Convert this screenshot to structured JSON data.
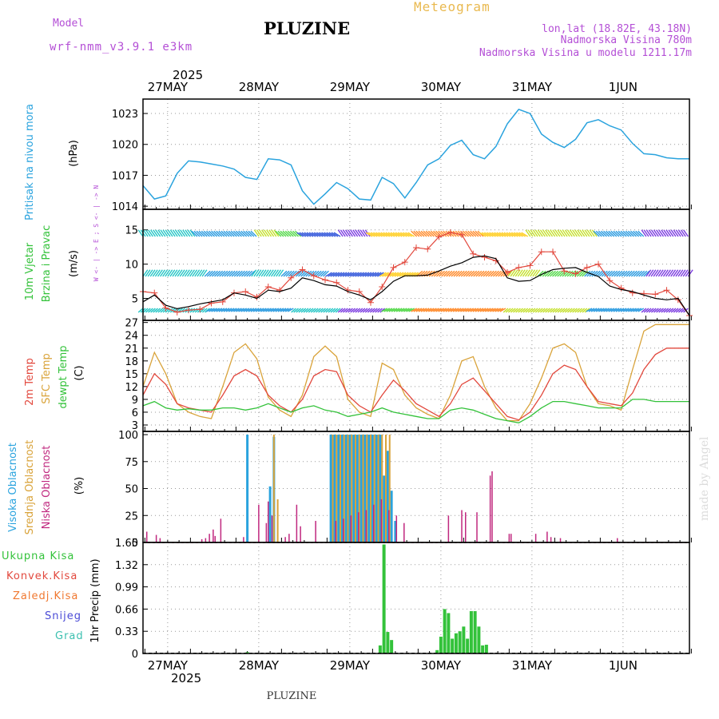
{
  "header": {
    "model_label": "Model",
    "model_name": "wrf-nmm_v3.9.1  e3km",
    "station": "PLUZINE",
    "meteogram": "Meteogram",
    "lonlat": "lon,lat (18.82E, 43.18N)",
    "elevation": "Nadmorska Visina 780m",
    "model_elevation": "Nadmorska Visina u modelu 1211.17m",
    "footer": "PLUZINE",
    "watermark": "made by Angel"
  },
  "colors": {
    "pressure": "#2aa3de",
    "wind_speed": "#e2483d",
    "wind_black": "#000000",
    "t2m": "#e2483d",
    "tsfc": "#d9a33a",
    "dewpt": "#33c23a",
    "high_cloud": "#2aa3de",
    "mid_cloud": "#d9a33a",
    "low_cloud": "#c0287f",
    "precip": "#33c23a",
    "conv": "#e2483d",
    "frozen": "#f07830",
    "snow": "#4b4bd6",
    "grad": "#3cc0b0",
    "label_purple": "#b44fd6"
  },
  "timeline": {
    "year": "2025",
    "days": [
      "27MAY",
      "28MAY",
      "29MAY",
      "30MAY",
      "31MAY",
      "1JUN"
    ],
    "day_positions_h": [
      6.5,
      30.5,
      54.5,
      78.5,
      102.5,
      126.5
    ],
    "total_hours": 144
  },
  "chart_data": [
    {
      "type": "line",
      "title": "Pritisak na nivou mora",
      "ylabel": "(hPa)",
      "ylim": [
        1013.7,
        1024.4
      ],
      "yticks": [
        1014,
        1017,
        1020,
        1023
      ],
      "series": [
        {
          "name": "Pritisak na nivou mora",
          "x": [
            0,
            3,
            6,
            9,
            12,
            15,
            18,
            21,
            24,
            27,
            30,
            33,
            36,
            39,
            42,
            45,
            48,
            51,
            54,
            57,
            60,
            63,
            66,
            69,
            72,
            75,
            78,
            81,
            84,
            87,
            90,
            93,
            96,
            99,
            102,
            105,
            108,
            111,
            114,
            117,
            120,
            123,
            126,
            129,
            132,
            135,
            138,
            141,
            144
          ],
          "values": [
            1016.0,
            1014.7,
            1015.0,
            1017.2,
            1018.4,
            1018.3,
            1018.1,
            1017.9,
            1017.6,
            1016.8,
            1016.6,
            1018.6,
            1018.5,
            1018.0,
            1015.5,
            1014.2,
            1015.2,
            1016.3,
            1015.7,
            1014.7,
            1014.6,
            1016.8,
            1016.2,
            1014.8,
            1016.3,
            1018.0,
            1018.6,
            1019.9,
            1020.4,
            1019.0,
            1018.6,
            1019.8,
            1022.0,
            1023.4,
            1023.0,
            1021.0,
            1020.2,
            1019.7,
            1020.5,
            1022.1,
            1022.4,
            1021.8,
            1021.4,
            1020.1,
            1019.1,
            1019.0,
            1018.7,
            1018.6,
            1018.6
          ]
        }
      ]
    },
    {
      "type": "line",
      "title": "10m Vjetar Brzina i Pravac",
      "ylabel": "(m/s)",
      "ylim": [
        1.8,
        18
      ],
      "yticks": [
        5,
        10,
        15
      ],
      "direction_legend": "W <- | -> E ; S <- | -> N",
      "series": [
        {
          "name": "wind_speed",
          "x": [
            0,
            3,
            6,
            9,
            12,
            15,
            18,
            21,
            24,
            27,
            30,
            33,
            36,
            39,
            42,
            45,
            48,
            51,
            54,
            57,
            60,
            63,
            66,
            69,
            72,
            75,
            78,
            81,
            84,
            87,
            90,
            93,
            96,
            99,
            102,
            105,
            108,
            111,
            114,
            117,
            120,
            123,
            126,
            129,
            132,
            135,
            138,
            141,
            144
          ],
          "values": [
            6.0,
            5.8,
            3.6,
            3.0,
            3.3,
            3.4,
            4.3,
            4.5,
            5.8,
            6.0,
            5.2,
            6.7,
            6.2,
            8.0,
            9.2,
            8.3,
            7.7,
            7.3,
            6.2,
            6.0,
            4.4,
            6.7,
            9.5,
            10.3,
            12.4,
            12.2,
            14.0,
            14.6,
            14.3,
            11.5,
            11.0,
            10.5,
            8.8,
            9.5,
            9.8,
            11.8,
            11.8,
            9.0,
            8.6,
            9.5,
            10.0,
            7.6,
            6.5,
            5.8,
            5.7,
            5.6,
            6.2,
            4.8,
            2.5
          ]
        },
        {
          "name": "wind_black",
          "x": [
            0,
            3,
            6,
            9,
            12,
            15,
            18,
            21,
            24,
            27,
            30,
            33,
            36,
            39,
            42,
            45,
            48,
            51,
            54,
            57,
            60,
            63,
            66,
            69,
            72,
            75,
            78,
            81,
            84,
            87,
            90,
            93,
            96,
            99,
            102,
            105,
            108,
            111,
            114,
            117,
            120,
            123,
            126,
            129,
            132,
            135,
            138,
            141,
            144
          ],
          "values": [
            4.5,
            5.5,
            4.0,
            3.5,
            3.8,
            4.2,
            4.5,
            4.8,
            5.8,
            5.5,
            5.0,
            6.2,
            6.0,
            6.5,
            8.0,
            7.6,
            7.0,
            6.8,
            6.0,
            5.5,
            4.8,
            6.0,
            7.5,
            8.3,
            8.3,
            8.4,
            9.0,
            9.7,
            10.2,
            11.0,
            11.2,
            10.8,
            8.0,
            7.5,
            7.6,
            8.5,
            9.2,
            9.4,
            9.5,
            8.8,
            8.2,
            6.8,
            6.3,
            6.0,
            5.5,
            5.0,
            4.8,
            5.0,
            2.5
          ]
        }
      ]
    },
    {
      "type": "line",
      "title": "2m Temp / SFC Temp / dewpt Temp",
      "ylabel": "(C)",
      "ylim": [
        1.5,
        27.5
      ],
      "yticks": [
        3,
        6,
        9,
        12,
        15,
        18,
        21,
        24,
        27
      ],
      "series": [
        {
          "name": "2m Temp",
          "x": [
            0,
            3,
            6,
            9,
            12,
            15,
            18,
            21,
            24,
            27,
            30,
            33,
            36,
            39,
            42,
            45,
            48,
            51,
            54,
            57,
            60,
            63,
            66,
            69,
            72,
            75,
            78,
            81,
            84,
            87,
            90,
            93,
            96,
            99,
            102,
            105,
            108,
            111,
            114,
            117,
            120,
            123,
            126,
            129,
            132,
            135,
            138,
            141,
            144
          ],
          "values": [
            10.0,
            15.0,
            12.5,
            8.0,
            7.0,
            6.5,
            6.0,
            10.0,
            14.5,
            16.0,
            14.5,
            10.0,
            7.5,
            6.0,
            9.0,
            14.5,
            16.0,
            15.5,
            10.0,
            7.5,
            6.0,
            10.0,
            13.5,
            11.0,
            8.0,
            6.5,
            5.0,
            8.0,
            12.5,
            14.0,
            11.0,
            8.0,
            5.0,
            4.2,
            6.0,
            10.0,
            15.0,
            17.0,
            16.0,
            12.0,
            8.5,
            8.0,
            7.5,
            10.5,
            16.0,
            19.5,
            21.0,
            21.0,
            21.0
          ]
        },
        {
          "name": "SFC Temp",
          "x": [
            0,
            3,
            6,
            9,
            12,
            15,
            18,
            21,
            24,
            27,
            30,
            33,
            36,
            39,
            42,
            45,
            48,
            51,
            54,
            57,
            60,
            63,
            66,
            69,
            72,
            75,
            78,
            81,
            84,
            87,
            90,
            93,
            96,
            99,
            102,
            105,
            108,
            111,
            114,
            117,
            120,
            123,
            126,
            129,
            132,
            135,
            138,
            141,
            144
          ],
          "values": [
            12.0,
            20.0,
            15.0,
            8.0,
            6.0,
            5.0,
            4.5,
            12.0,
            20.0,
            22.0,
            18.5,
            9.5,
            6.5,
            5.0,
            10.0,
            19.0,
            21.5,
            19.0,
            9.0,
            6.0,
            5.0,
            17.5,
            16.0,
            10.0,
            7.0,
            5.5,
            4.5,
            10.0,
            18.0,
            19.0,
            12.0,
            7.0,
            4.0,
            4.0,
            8.0,
            14.0,
            21.0,
            22.0,
            20.0,
            12.0,
            8.0,
            7.5,
            6.5,
            16.0,
            25.0,
            26.5,
            26.5,
            26.5,
            26.5
          ]
        },
        {
          "name": "dewpt Temp",
          "x": [
            0,
            3,
            6,
            9,
            12,
            15,
            18,
            21,
            24,
            27,
            30,
            33,
            36,
            39,
            42,
            45,
            48,
            51,
            54,
            57,
            60,
            63,
            66,
            69,
            72,
            75,
            78,
            81,
            84,
            87,
            90,
            93,
            96,
            99,
            102,
            105,
            108,
            111,
            114,
            117,
            120,
            123,
            126,
            129,
            132,
            135,
            138,
            141,
            144
          ],
          "values": [
            7.5,
            8.5,
            7.0,
            6.5,
            6.8,
            6.5,
            6.5,
            7.0,
            7.0,
            6.5,
            7.0,
            8.0,
            7.0,
            6.0,
            7.0,
            7.5,
            6.5,
            6.0,
            5.0,
            5.5,
            6.0,
            7.0,
            6.0,
            5.5,
            5.0,
            4.5,
            4.5,
            6.5,
            7.0,
            6.5,
            5.5,
            4.5,
            4.0,
            3.5,
            5.0,
            7.0,
            8.5,
            8.5,
            8.0,
            7.5,
            7.0,
            7.0,
            7.0,
            9.0,
            9.0,
            8.5,
            8.5,
            8.5,
            8.5
          ]
        }
      ]
    },
    {
      "type": "bar",
      "title": "Visoka Oblacnost / Srednja Oblacnost / Niska Oblacnost",
      "ylabel": "(%)",
      "ylim": [
        0,
        103
      ],
      "yticks": [
        0,
        25,
        50,
        75,
        100
      ],
      "series": [
        {
          "name": "Visoka Oblacnost",
          "x": [
            27.5,
            33.5,
            34.5,
            49.5,
            50.5,
            51.5,
            52.5,
            53.5,
            54.5,
            55.5,
            56.5,
            57.5,
            58.5,
            59.5,
            60.5,
            61.5,
            62.5,
            63.5,
            64.5,
            65.5,
            66.5
          ],
          "values": [
            100,
            52,
            98,
            100,
            100,
            100,
            100,
            100,
            100,
            100,
            100,
            100,
            100,
            100,
            100,
            100,
            100,
            62,
            85,
            48,
            20
          ]
        },
        {
          "name": "Srednja Oblacnost",
          "x": [
            34.5,
            35.5,
            50.0,
            51.0,
            52.0,
            53.0,
            54.0,
            55.0,
            56.0,
            57.0,
            58.0,
            59.0,
            60.0,
            61.0,
            62.0,
            63.0,
            64.0,
            65.0
          ],
          "values": [
            100,
            40,
            100,
            100,
            100,
            100,
            100,
            100,
            100,
            100,
            100,
            100,
            100,
            100,
            100,
            100,
            100,
            100
          ]
        },
        {
          "name": "Niska Oblacnost",
          "x": [
            1,
            3.5,
            4.5,
            15.5,
            16.5,
            17.5,
            18.5,
            19,
            20.5,
            26.5,
            30.5,
            32.5,
            33.0,
            34.0,
            37.5,
            38.5,
            40.5,
            41.5,
            45.5,
            50.8,
            52.8,
            54.8,
            56.8,
            58.8,
            60.8,
            62.8,
            64.8,
            66.8,
            68.8,
            80.5,
            84.0,
            85.0,
            88.0,
            91.5,
            92.0,
            96.5,
            97.0,
            103.5,
            106.5,
            107.5,
            110.0,
            125.0
          ],
          "values": [
            10,
            7,
            4,
            3,
            4,
            8,
            12,
            6,
            22,
            5,
            35,
            18,
            38,
            25,
            5,
            8,
            35,
            15,
            20,
            20,
            22,
            25,
            28,
            30,
            35,
            40,
            30,
            25,
            18,
            25,
            30,
            28,
            28,
            62,
            66,
            8,
            8,
            8,
            10,
            5,
            4,
            4
          ]
        }
      ]
    },
    {
      "type": "bar",
      "title": "1hr Precip",
      "ylabel": "(mm)",
      "ylim": [
        0,
        1.65
      ],
      "yticks": [
        0,
        0.33,
        0.66,
        0.99,
        1.32,
        1.65
      ],
      "legend": [
        "Ukupna Kisa",
        "Konvek.Kisa",
        "Zaledj.Kisa",
        "Snijeg",
        "Grad"
      ],
      "series": [
        {
          "name": "Ukupna Kisa",
          "x": [
            27.5,
            62.5,
            63.5,
            64.5,
            65.5,
            77.5,
            78.5,
            79.5,
            80.5,
            81.5,
            82.5,
            83.5,
            84.5,
            85.5,
            86.5,
            87.5,
            88.5,
            89.5,
            90.5
          ],
          "values": [
            0.02,
            0.12,
            1.62,
            0.32,
            0.2,
            0.05,
            0.25,
            0.66,
            0.6,
            0.22,
            0.3,
            0.33,
            0.4,
            0.22,
            0.63,
            0.63,
            0.4,
            0.12,
            0.13
          ]
        }
      ]
    }
  ]
}
